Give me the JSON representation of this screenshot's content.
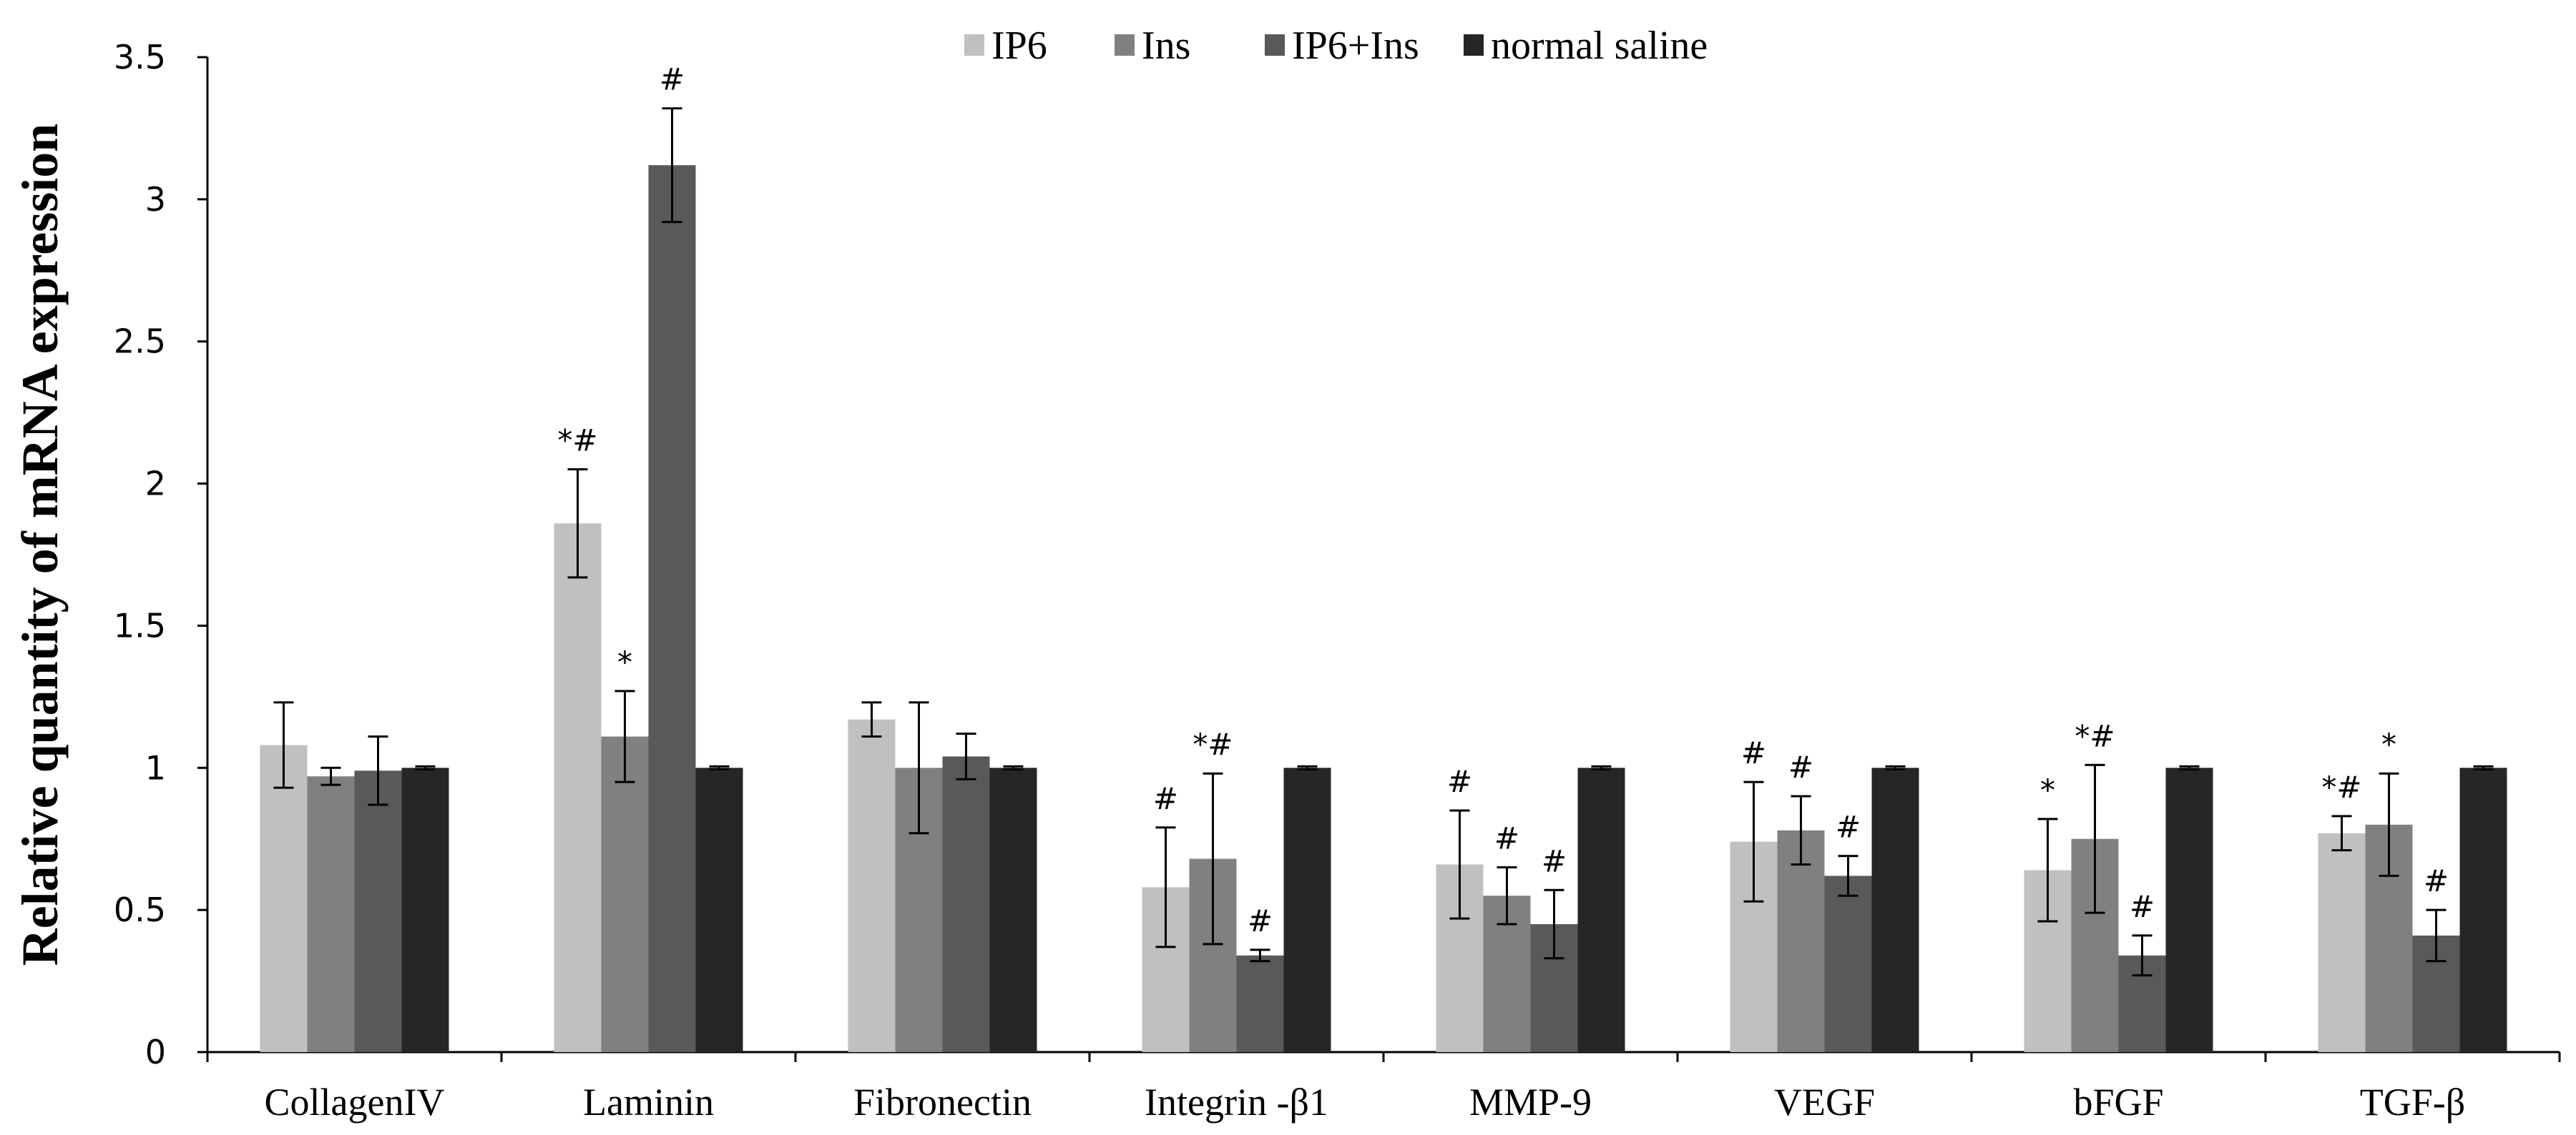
{
  "chart_data": {
    "type": "bar",
    "title": "",
    "xlabel": "",
    "ylabel": "Relative quantity of mRNA expression",
    "ylim": [
      0,
      3.5
    ],
    "yticks": [
      "0",
      "0.5",
      "1",
      "1.5",
      "2",
      "2.5",
      "3",
      "3.5"
    ],
    "ytick_values": [
      0,
      0.5,
      1,
      1.5,
      2,
      2.5,
      3,
      3.5
    ],
    "grid": false,
    "legend_position": "top-center",
    "categories": [
      "CollagenIV",
      "Laminin",
      "Fibronectin",
      "Integrin -β1",
      "MMP-9",
      "VEGF",
      "bFGF",
      "TGF-β"
    ],
    "series": [
      {
        "name": "IP6",
        "color": "#c0c0c0",
        "values": [
          1.08,
          1.86,
          1.17,
          0.58,
          0.66,
          0.74,
          0.64,
          0.77
        ],
        "errors": [
          0.15,
          0.19,
          0.06,
          0.21,
          0.19,
          0.21,
          0.18,
          0.06
        ],
        "annotations": [
          "",
          "*#",
          "",
          "#",
          "#",
          "#",
          "*",
          "*#"
        ]
      },
      {
        "name": "Ins",
        "color": "#808080",
        "values": [
          0.97,
          1.11,
          1.0,
          0.68,
          0.55,
          0.78,
          0.75,
          0.8
        ],
        "errors": [
          0.03,
          0.16,
          0.23,
          0.3,
          0.1,
          0.12,
          0.26,
          0.18
        ],
        "annotations": [
          "",
          "*",
          "",
          "*#",
          "#",
          "#",
          "*#",
          "*"
        ]
      },
      {
        "name": "IP6+Ins",
        "color": "#595959",
        "values": [
          0.99,
          3.12,
          1.04,
          0.34,
          0.45,
          0.62,
          0.34,
          0.41
        ],
        "errors": [
          0.12,
          0.2,
          0.08,
          0.02,
          0.12,
          0.07,
          0.07,
          0.09
        ],
        "annotations": [
          "",
          "#",
          "",
          "#",
          "#",
          "#",
          "#",
          "#"
        ]
      },
      {
        "name": "normal saline",
        "color": "#262626",
        "values": [
          1.0,
          1.0,
          1.0,
          1.0,
          1.0,
          1.0,
          1.0,
          1.0
        ],
        "errors": [
          0.005,
          0.005,
          0.005,
          0.005,
          0.005,
          0.005,
          0.005,
          0.005
        ],
        "annotations": [
          "",
          "",
          "",
          "",
          "",
          "",
          "",
          ""
        ]
      }
    ]
  }
}
